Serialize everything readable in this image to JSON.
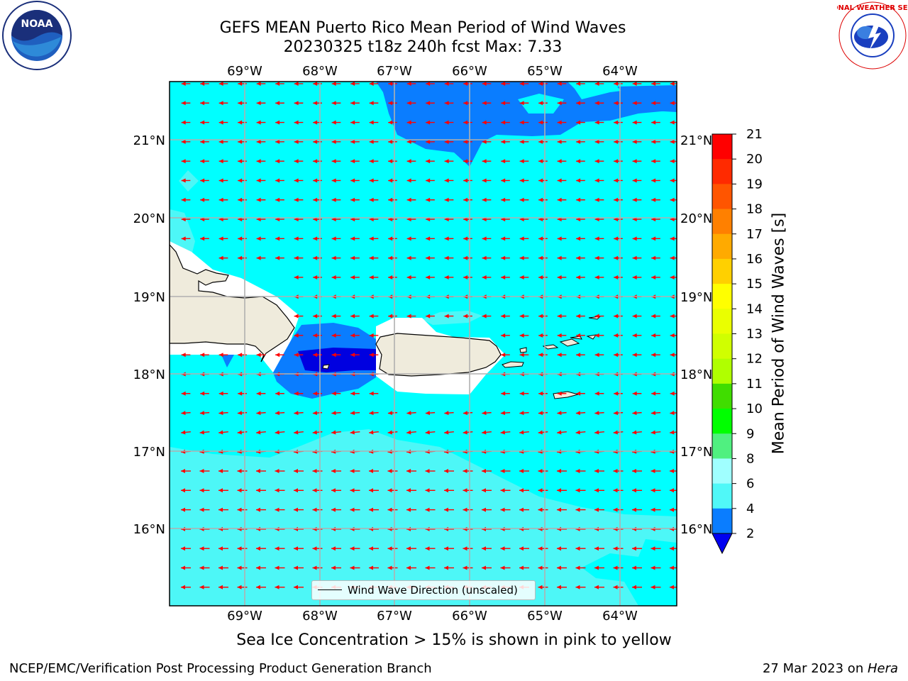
{
  "header": {
    "title_line1": "GEFS MEAN Puerto Rico Mean Period of Wind Waves",
    "title_line2": "20230325 t18z 240h fcst   Max: 7.33"
  },
  "logos": {
    "noaa": "NOAA",
    "nws": "NATIONAL WEATHER SERVICE"
  },
  "map": {
    "lon_labels": [
      "69°W",
      "68°W",
      "67°W",
      "66°W",
      "65°W",
      "64°W"
    ],
    "lat_labels": [
      "21°N",
      "20°N",
      "19°N",
      "18°N",
      "17°N",
      "16°N"
    ],
    "legend_label": "Wind Wave Direction (unscaled)",
    "colors": {
      "ocean_4_6": "#00ffff",
      "ocean_6_8": "#4df7f7",
      "ocean_2_4": "#0a7dff",
      "ocean_lt_2": "#0000e0",
      "land": "#efebdc",
      "arrow": "#ff0000",
      "grid": "#b0b0b0"
    }
  },
  "colorbar": {
    "title": "Mean Period of Wind Waves [s]",
    "ticks": [
      "21",
      "20",
      "19",
      "18",
      "17",
      "16",
      "15",
      "14",
      "13",
      "12",
      "11",
      "10",
      "9",
      "8",
      "6",
      "4",
      "2"
    ],
    "colors": [
      "#ff0000",
      "#ff2a00",
      "#ff5500",
      "#ff8000",
      "#ffaa00",
      "#ffd000",
      "#ffff00",
      "#eaff00",
      "#d0ff00",
      "#b0ff00",
      "#40dd00",
      "#00ff00",
      "#50f080",
      "#a0ffff",
      "#50f8f8",
      "#00ffff",
      "#0a7dff"
    ],
    "under_color": "#0000f0"
  },
  "notes": {
    "ice": "Sea Ice Concentration > 15% is shown in pink to yellow",
    "footer_left": "NCEP/EMC/Verification Post Processing Product Generation Branch",
    "footer_date": "27 Mar 2023 on ",
    "footer_host": "Hera"
  }
}
